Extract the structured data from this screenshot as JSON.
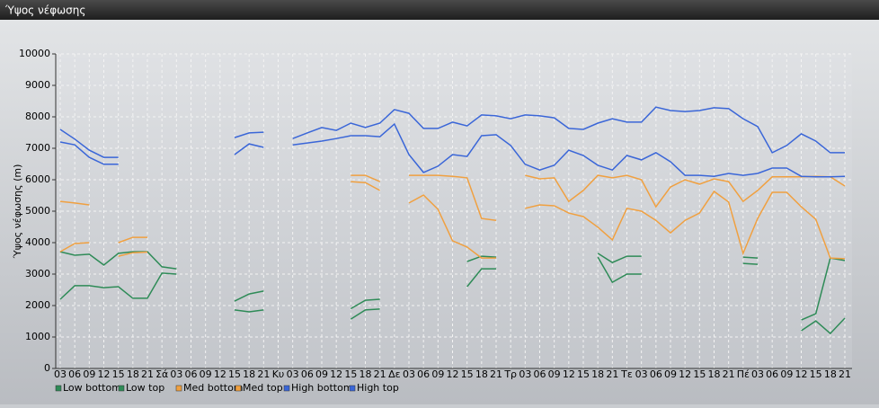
{
  "chart_data": {
    "type": "line",
    "title": "Ύψος νέφωσης",
    "y_label": "Ύψος νέφωσης (m)",
    "categories": [
      "03",
      "06",
      "09",
      "12",
      "15",
      "18",
      "21",
      "Σά",
      "03",
      "06",
      "09",
      "12",
      "15",
      "18",
      "21",
      "Κυ",
      "03",
      "06",
      "09",
      "12",
      "15",
      "18",
      "21",
      "Δε",
      "03",
      "06",
      "09",
      "12",
      "15",
      "18",
      "21",
      "Τρ",
      "03",
      "06",
      "09",
      "12",
      "15",
      "18",
      "21",
      "Τε",
      "03",
      "06",
      "09",
      "12",
      "15",
      "18",
      "21",
      "Πέ",
      "03",
      "06",
      "09",
      "12",
      "15",
      "18",
      "21"
    ],
    "ylim": [
      0,
      10000
    ],
    "yticks": [
      0,
      1000,
      2000,
      3000,
      4000,
      5000,
      6000,
      7000,
      8000,
      9000,
      10000
    ],
    "grid": true,
    "series": [
      {
        "name": "Low bottom",
        "color": "#2e8b57",
        "values": [
          2200,
          2630,
          2630,
          2570,
          2600,
          2230,
          2230,
          3030,
          3000,
          null,
          null,
          null,
          1860,
          1800,
          1860,
          null,
          null,
          null,
          null,
          null,
          1570,
          1860,
          1890,
          null,
          null,
          null,
          null,
          null,
          2600,
          3170,
          3170,
          null,
          null,
          null,
          null,
          null,
          null,
          3540,
          2740,
          3000,
          3000,
          null,
          null,
          null,
          null,
          null,
          null,
          3340,
          3310,
          null,
          null,
          1200,
          1510,
          1110,
          1600
        ]
      },
      {
        "name": "Low top",
        "color": "#2e8b57",
        "values": [
          3710,
          3600,
          3630,
          3290,
          3660,
          3710,
          3710,
          3230,
          3170,
          null,
          null,
          null,
          2140,
          2370,
          2460,
          null,
          null,
          null,
          null,
          null,
          1900,
          2170,
          2200,
          null,
          null,
          null,
          null,
          null,
          3400,
          3570,
          3540,
          null,
          null,
          null,
          null,
          null,
          null,
          3660,
          3370,
          3570,
          3570,
          null,
          null,
          null,
          null,
          null,
          null,
          3540,
          3510,
          null,
          null,
          1540,
          1740,
          3510,
          3430
        ]
      },
      {
        "name": "Med bottom",
        "color": "#f0a040",
        "values": [
          3710,
          3970,
          4000,
          null,
          3570,
          3680,
          3700,
          null,
          null,
          null,
          null,
          null,
          null,
          null,
          null,
          null,
          null,
          null,
          null,
          null,
          5940,
          5910,
          5660,
          null,
          5260,
          5510,
          5060,
          4060,
          3860,
          3510,
          3510,
          null,
          5090,
          5200,
          5170,
          4940,
          4830,
          4490,
          4090,
          5090,
          5000,
          4710,
          4310,
          4710,
          4940,
          5630,
          5290,
          3660,
          4770,
          5600,
          5600,
          5140,
          4740,
          3510,
          3490
        ]
      },
      {
        "name": "Med top",
        "color": "#f0a040",
        "values": [
          5310,
          5260,
          5200,
          null,
          4000,
          4170,
          4170,
          null,
          null,
          null,
          null,
          null,
          null,
          null,
          null,
          null,
          null,
          null,
          null,
          null,
          6140,
          6140,
          5940,
          null,
          6140,
          6140,
          6140,
          6110,
          6060,
          4770,
          4710,
          null,
          6140,
          6030,
          6060,
          5310,
          5660,
          6140,
          6060,
          6140,
          6000,
          5140,
          5770,
          6000,
          5860,
          6030,
          5940,
          5310,
          5660,
          6090,
          6090,
          6090,
          6110,
          6090,
          5800
        ]
      },
      {
        "name": "High bottom",
        "color": "#3a66d8",
        "values": [
          7200,
          7110,
          6710,
          6490,
          6490,
          null,
          null,
          null,
          null,
          null,
          null,
          null,
          6800,
          7140,
          7030,
          null,
          7110,
          7170,
          7230,
          7310,
          7400,
          7400,
          7370,
          7770,
          6800,
          6230,
          6430,
          6800,
          6740,
          7400,
          7430,
          7090,
          6490,
          6310,
          6460,
          6940,
          6770,
          6460,
          6310,
          6770,
          6630,
          6860,
          6570,
          6140,
          6140,
          6110,
          6200,
          6140,
          6200,
          6370,
          6370,
          6110,
          6090,
          6090,
          6110
        ]
      },
      {
        "name": "High top",
        "color": "#3a66d8",
        "values": [
          7600,
          7290,
          6940,
          6710,
          6710,
          null,
          null,
          null,
          null,
          null,
          null,
          null,
          7340,
          7490,
          7510,
          null,
          7310,
          7490,
          7660,
          7570,
          7800,
          7660,
          7800,
          8230,
          8110,
          7630,
          7630,
          7830,
          7710,
          8060,
          8030,
          7940,
          8060,
          8030,
          7970,
          7630,
          7600,
          7800,
          7940,
          7830,
          7830,
          8310,
          8200,
          8170,
          8200,
          8290,
          8260,
          7940,
          7690,
          6860,
          7090,
          7460,
          7230,
          6860,
          6860
        ]
      }
    ]
  }
}
